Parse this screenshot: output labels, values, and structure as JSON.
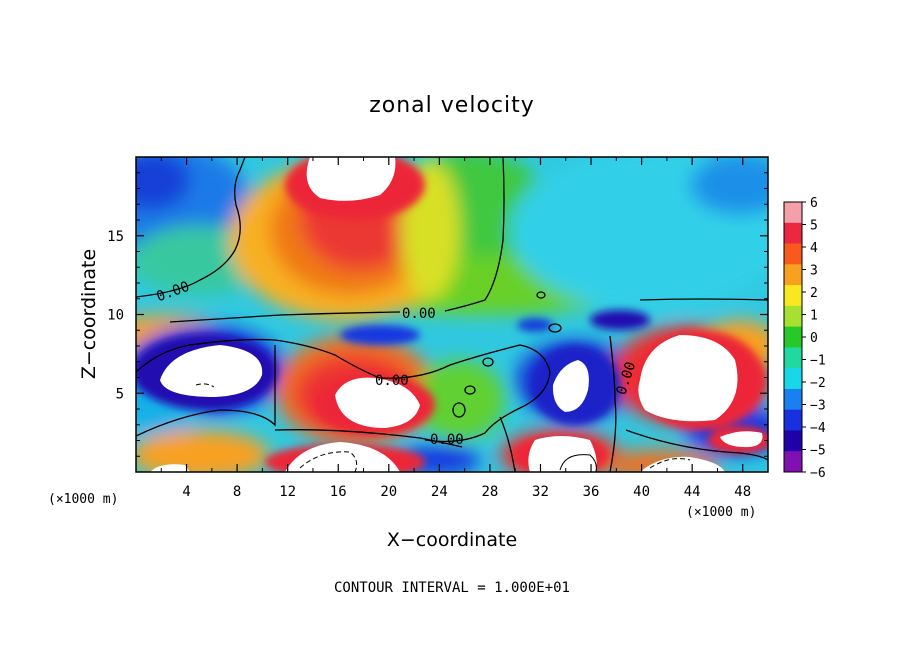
{
  "chart_data": {
    "type": "heatmap",
    "title": "zonal velocity",
    "xlabel": "X−coordinate",
    "ylabel": "Z−coordinate",
    "x_unit_left": "(×1000 m)",
    "x_unit_right": "(×1000 m)",
    "xlim": [
      0,
      50
    ],
    "ylim": [
      0,
      20
    ],
    "x_ticks": [
      4,
      8,
      12,
      16,
      20,
      24,
      28,
      32,
      36,
      40,
      44,
      48
    ],
    "y_ticks": [
      5,
      10,
      15
    ],
    "colorbar": {
      "ticks": [
        6,
        5,
        4,
        3,
        2,
        1,
        0,
        -1,
        -2,
        -3,
        -4,
        -5,
        -6
      ],
      "tick_labels": [
        "6",
        "5",
        "4",
        "3",
        "2",
        "1",
        "0",
        "−1",
        "−2",
        "−3",
        "−4",
        "−5",
        "−6"
      ],
      "colors": [
        "#f4a0a8",
        "#ec2840",
        "#f85a1e",
        "#f8a020",
        "#f8e820",
        "#a8e030",
        "#28c828",
        "#20d8a0",
        "#18d8e8",
        "#1880f0",
        "#1830e0",
        "#2000a8",
        "#8010b0"
      ]
    },
    "contour_interval": "CONTOUR INTERVAL = 1.000E+01",
    "contour_labels": [
      "0.00",
      "0.00",
      "0.00",
      "0.00",
      "0.00"
    ],
    "features": [
      {
        "x": 19,
        "z": 18.5,
        "value": 7
      },
      {
        "x": 6,
        "z": 5.5,
        "value": -7
      },
      {
        "x": 19,
        "z": 4.8,
        "value": 7
      },
      {
        "x": 35,
        "z": 5.5,
        "value": -7
      },
      {
        "x": 43,
        "z": 6,
        "value": 7
      },
      {
        "x": 16,
        "z": 0.6,
        "value": 7
      },
      {
        "x": 36,
        "z": 1.5,
        "value": 7
      },
      {
        "x": 48,
        "z": 2,
        "value": 7
      },
      {
        "x": 44,
        "z": 0.8,
        "value": 7
      },
      {
        "x": 1,
        "z": 18,
        "value": -4
      },
      {
        "x": 48,
        "z": 18,
        "value": -3
      }
    ]
  }
}
